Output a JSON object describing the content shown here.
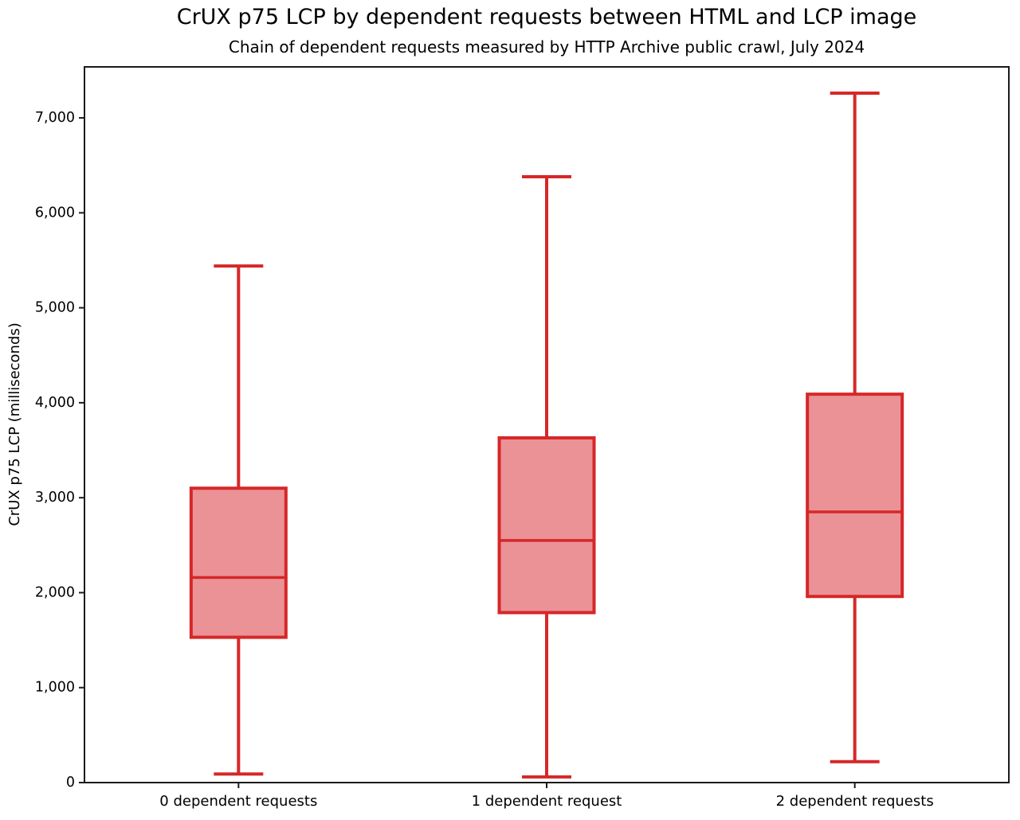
{
  "header": {
    "title": "CrUX p75 LCP by dependent requests between HTML and LCP image",
    "subtitle": "Chain of dependent requests measured by HTTP Archive public crawl, July 2024"
  },
  "chart_data": {
    "type": "boxplot",
    "title": "CrUX p75 LCP by dependent requests between HTML and LCP image",
    "subtitle": "Chain of dependent requests measured by HTTP Archive public crawl, July 2024",
    "xlabel": "",
    "ylabel": "CrUX p75 LCP (milliseconds)",
    "units": "milliseconds",
    "ylim": [
      0,
      7537
    ],
    "grid": false,
    "legend": null,
    "y_ticks": [
      {
        "value": 0,
        "label": "0"
      },
      {
        "value": 1000,
        "label": "1,000"
      },
      {
        "value": 2000,
        "label": "2,000"
      },
      {
        "value": 3000,
        "label": "3,000"
      },
      {
        "value": 4000,
        "label": "4,000"
      },
      {
        "value": 5000,
        "label": "5,000"
      },
      {
        "value": 6000,
        "label": "6,000"
      },
      {
        "value": 7000,
        "label": "7,000"
      }
    ],
    "categories": [
      "0 dependent requests",
      "1 dependent request",
      "2 dependent requests"
    ],
    "series": [
      {
        "name": "0 dependent requests",
        "min": 90,
        "q1": 1530,
        "median": 2160,
        "q3": 3100,
        "max": 5440
      },
      {
        "name": "1 dependent request",
        "min": 60,
        "q1": 1790,
        "median": 2550,
        "q3": 3630,
        "max": 6380
      },
      {
        "name": "2 dependent requests",
        "min": 220,
        "q1": 1960,
        "median": 2850,
        "q3": 4090,
        "max": 7260
      }
    ],
    "colors": {
      "box_fill": "#ea9296",
      "box_stroke": "#d62728",
      "median": "#d62728",
      "whisker": "#d62728",
      "axis": "#1a1a1a",
      "text": "#000000",
      "background": "#ffffff"
    }
  }
}
